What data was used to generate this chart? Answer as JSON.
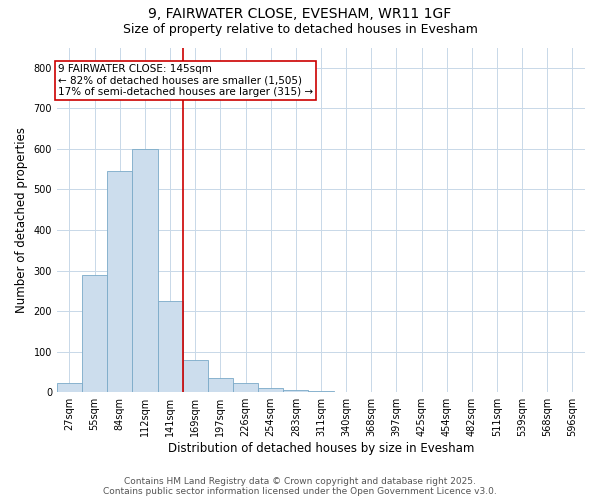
{
  "title_line1": "9, FAIRWATER CLOSE, EVESHAM, WR11 1GF",
  "title_line2": "Size of property relative to detached houses in Evesham",
  "xlabel": "Distribution of detached houses by size in Evesham",
  "ylabel": "Number of detached properties",
  "categories": [
    "27sqm",
    "55sqm",
    "84sqm",
    "112sqm",
    "141sqm",
    "169sqm",
    "197sqm",
    "226sqm",
    "254sqm",
    "283sqm",
    "311sqm",
    "340sqm",
    "368sqm",
    "397sqm",
    "425sqm",
    "454sqm",
    "482sqm",
    "511sqm",
    "539sqm",
    "568sqm",
    "596sqm"
  ],
  "values": [
    22,
    290,
    545,
    600,
    225,
    80,
    35,
    22,
    10,
    5,
    3,
    0,
    0,
    0,
    0,
    0,
    0,
    0,
    0,
    0,
    0
  ],
  "bar_color": "#ccdded",
  "bar_edge_color": "#7aaac8",
  "property_line_index": 4,
  "property_line_color": "#cc0000",
  "annotation_text_line1": "9 FAIRWATER CLOSE: 145sqm",
  "annotation_text_line2": "← 82% of detached houses are smaller (1,505)",
  "annotation_text_line3": "17% of semi-detached houses are larger (315) →",
  "annotation_box_color": "#cc0000",
  "annotation_box_fill": "#ffffff",
  "ylim": [
    0,
    850
  ],
  "yticks": [
    0,
    100,
    200,
    300,
    400,
    500,
    600,
    700,
    800
  ],
  "footer_line1": "Contains HM Land Registry data © Crown copyright and database right 2025.",
  "footer_line2": "Contains public sector information licensed under the Open Government Licence v3.0.",
  "bg_color": "#ffffff",
  "grid_color": "#c8d8e8",
  "title_fontsize": 10,
  "subtitle_fontsize": 9,
  "axis_label_fontsize": 8.5,
  "tick_fontsize": 7,
  "annotation_fontsize": 7.5,
  "footer_fontsize": 6.5
}
